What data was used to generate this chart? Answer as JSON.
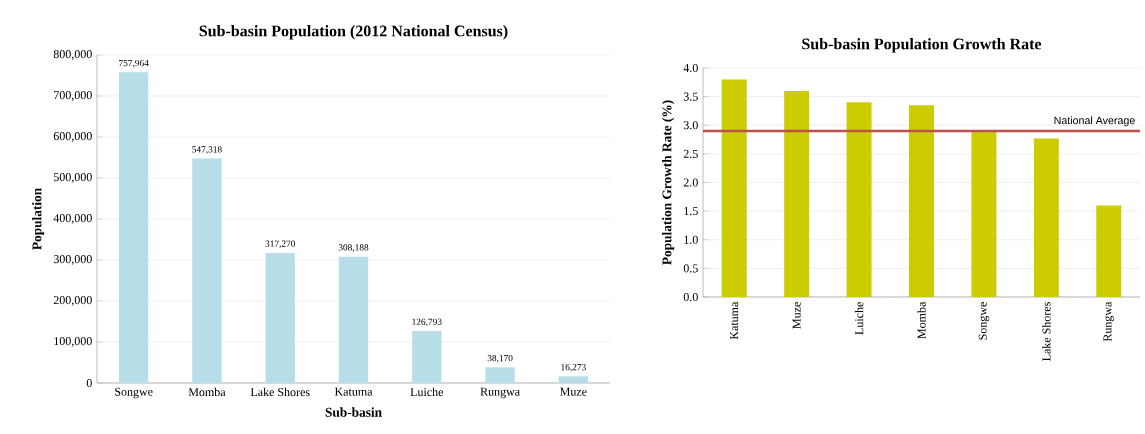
{
  "chart_data": [
    {
      "type": "bar",
      "title": "Sub-basin Population (2012 National Census)",
      "xlabel": "Sub-basin",
      "ylabel": "Population",
      "categories": [
        "Songwe",
        "Momba",
        "Lake Shores",
        "Katuma",
        "Luiche",
        "Rungwa",
        "Muze"
      ],
      "values": [
        757964,
        547318,
        317270,
        308188,
        126793,
        38170,
        16273
      ],
      "value_labels": [
        "757,964",
        "547,318",
        "317,270",
        "308,188",
        "126,793",
        "38,170",
        "16,273"
      ],
      "color": "#b7dde8",
      "ylim": [
        0,
        800000
      ],
      "yticks": [
        0,
        {
          "value": 100000,
          "label": "100,000"
        },
        {
          "value": 200000,
          "label": "200,000"
        },
        {
          "value": 300000,
          "label": "300,000"
        },
        {
          "value": 400000,
          "label": "400,000"
        },
        {
          "value": 500000,
          "label": "500,000"
        },
        {
          "value": 600000,
          "label": "600,000"
        },
        {
          "value": 700000,
          "label": "700,000"
        },
        {
          "value": 800000,
          "label": "800,000"
        }
      ],
      "grid": "y"
    },
    {
      "type": "bar",
      "title": "Sub-basin Population Growth Rate",
      "ylabel": "Population Growth Rate (%)",
      "categories": [
        "Katuma",
        "Muze",
        "Luiche",
        "Momba",
        "Songwe",
        "Lake Shores",
        "Rungwa"
      ],
      "values": [
        3.8,
        3.6,
        3.4,
        3.35,
        2.9,
        2.77,
        1.6
      ],
      "color": "#cccc00",
      "ylim": [
        0,
        4
      ],
      "yticks": [
        {
          "value": 0,
          "label": "0.0"
        },
        {
          "value": 0.5,
          "label": "0.5"
        },
        {
          "value": 1,
          "label": "1.0"
        },
        {
          "value": 1.5,
          "label": "1.5"
        },
        {
          "value": 2,
          "label": "2.0"
        },
        {
          "value": 2.5,
          "label": "2.5"
        },
        {
          "value": 3,
          "label": "3.0"
        },
        {
          "value": 3.5,
          "label": "3.5"
        },
        {
          "value": 4,
          "label": "4.0"
        }
      ],
      "grid": "y",
      "ref_lines": [
        {
          "axis": "y",
          "value": 2.9,
          "label": "National Average",
          "color": "#c0504d"
        }
      ]
    }
  ]
}
